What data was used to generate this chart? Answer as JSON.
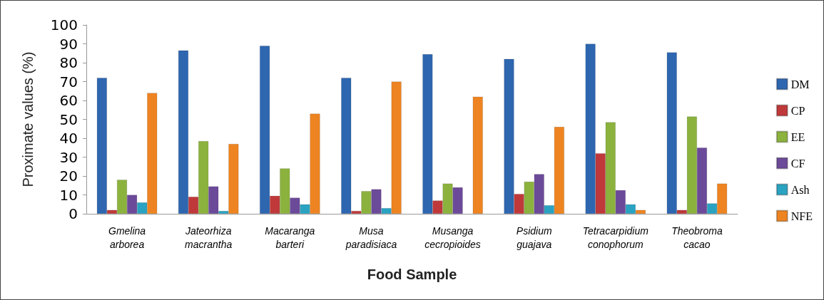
{
  "chart_data": {
    "type": "bar",
    "xlabel": "Food Sample",
    "ylabel": "Proximate values (%)",
    "categories": [
      "Gmelina arborea",
      "Jateorhiza macrantha",
      "Macaranga barteri",
      "Musa paradisiaca",
      "Musanga cecropioides",
      "Psidium guajava",
      "Tetracarpidium conophorum",
      "Theobroma cacao"
    ],
    "series": [
      {
        "name": "DM",
        "color": "#2e66b0",
        "values": [
          72,
          86.5,
          89,
          72,
          84.5,
          82,
          90,
          85.5
        ]
      },
      {
        "name": "CP",
        "color": "#c0393a",
        "values": [
          2,
          9,
          9.5,
          1.5,
          7,
          10.5,
          32,
          2
        ]
      },
      {
        "name": "EE",
        "color": "#8cb23e",
        "values": [
          18,
          38.5,
          24,
          12,
          16,
          17,
          48.5,
          51.5
        ]
      },
      {
        "name": "CF",
        "color": "#6c4a9a",
        "values": [
          10,
          14.5,
          8.5,
          13,
          14,
          21,
          12.5,
          35
        ]
      },
      {
        "name": "Ash",
        "color": "#2aa3c2",
        "values": [
          6,
          1.5,
          5,
          3,
          null,
          4.5,
          5,
          5.5
        ]
      },
      {
        "name": "NFE",
        "color": "#ee8421",
        "values": [
          64,
          37,
          53,
          70,
          62,
          46,
          2,
          16
        ]
      }
    ],
    "ylim": [
      0,
      100
    ],
    "yticks": [
      0,
      10,
      20,
      30,
      40,
      50,
      60,
      70,
      80,
      90,
      100
    ],
    "grid": false,
    "legend": "right"
  }
}
